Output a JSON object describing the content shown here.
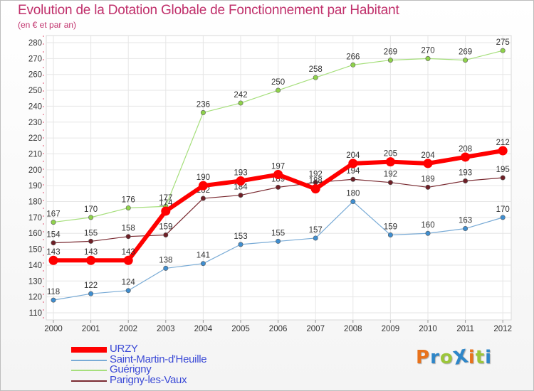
{
  "title": "Evolution de la Dotation Globale de Fonctionnement par Habitant",
  "subtitle": "(en € et par an)",
  "logo": {
    "text": "ProXiti",
    "letter_colors": [
      "#e8721c",
      "#2e86c8",
      "#9cc63a",
      "#2e86c8",
      "#e8721c",
      "#9cc63a",
      "#2e86c8"
    ]
  },
  "chart_data": {
    "type": "line",
    "title": "Evolution de la Dotation Globale de Fonctionnement par Habitant",
    "subtitle": "(en € et par an)",
    "xlabel": "",
    "ylabel": "",
    "ylim": [
      110,
      280
    ],
    "yticks": [
      110,
      120,
      130,
      140,
      150,
      160,
      170,
      180,
      190,
      200,
      210,
      220,
      230,
      240,
      250,
      260,
      270,
      280
    ],
    "grid": true,
    "legend_position": "bottom-left",
    "categories": [
      "2000",
      "2001",
      "2002",
      "2003",
      "2004",
      "2005",
      "2006",
      "2007",
      "2008",
      "2009",
      "2010",
      "2011",
      "2012"
    ],
    "series": [
      {
        "name": "Guérigny",
        "color": "#8fd24b",
        "line_color": "#a6df7c",
        "stroke": 1.2,
        "marker": 3.2,
        "values": [
          167,
          170,
          176,
          177,
          236,
          242,
          250,
          258,
          266,
          269,
          270,
          269,
          275
        ],
        "labels": [
          "167",
          "170",
          "176",
          "177",
          "236",
          "242",
          "250",
          "258",
          "266",
          "269",
          "270",
          "269",
          "275"
        ]
      },
      {
        "name": "Parigny-les-Vaux",
        "color": "#6e1f26",
        "line_color": "#7a2a31",
        "stroke": 1.2,
        "marker": 3.2,
        "values": [
          154,
          155,
          158,
          159,
          182,
          184,
          189,
          192,
          194,
          192,
          189,
          193,
          195
        ],
        "labels": [
          "154",
          "155",
          "158",
          "159",
          "182",
          "184",
          "189",
          "192",
          "194",
          "192",
          "189",
          "193",
          "195"
        ]
      },
      {
        "name": "Saint-Martin-d'Heuille",
        "color": "#3f8ed0",
        "line_color": "#79abd6",
        "stroke": 1.2,
        "marker": 3.2,
        "values": [
          118,
          122,
          124,
          138,
          141,
          153,
          155,
          157,
          180,
          159,
          160,
          163,
          170
        ],
        "labels": [
          "118",
          "122",
          "124",
          "138",
          "141",
          "153",
          "155",
          "157",
          "180",
          "159",
          "160",
          "163",
          "170"
        ]
      },
      {
        "name": "URZY",
        "color": "#ff0000",
        "line_color": "#ff0000",
        "stroke": 6,
        "marker": 6,
        "values": [
          143,
          143,
          143,
          174,
          190,
          193,
          197,
          188,
          204,
          205,
          204,
          208,
          212
        ],
        "labels": [
          "143",
          "143",
          "143",
          "174",
          "190",
          "193",
          "197",
          "188",
          "204",
          "205",
          "204",
          "208",
          "212"
        ]
      }
    ],
    "legend": [
      {
        "name": "URZY",
        "color": "#ff0000",
        "thickness": 8
      },
      {
        "name": "Saint-Martin-d'Heuille",
        "color": "#79abd6",
        "thickness": 2
      },
      {
        "name": "Guérigny",
        "color": "#a6df7c",
        "thickness": 2
      },
      {
        "name": "Parigny-les-Vaux",
        "color": "#7a2a31",
        "thickness": 2
      }
    ]
  }
}
